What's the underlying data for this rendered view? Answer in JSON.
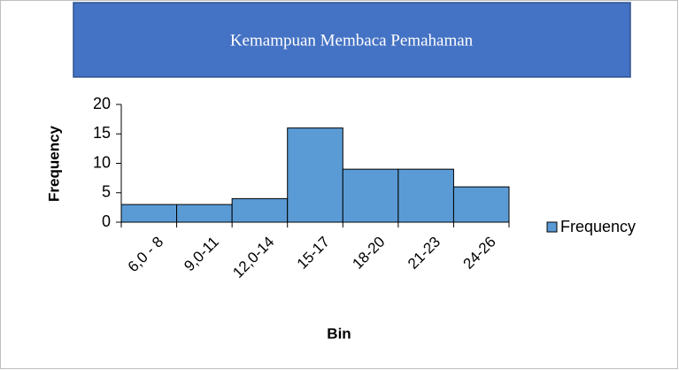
{
  "chart_data": {
    "type": "bar",
    "title": "Kemampuan Membaca Pemahaman",
    "x_label": "Bin",
    "y_label": "Frequency",
    "categories": [
      "6,0 - 8",
      "9,0-11",
      "12,0-14",
      "15-17",
      "18-20",
      "21-23",
      "24-26"
    ],
    "series": [
      {
        "name": "Frequency",
        "color": "#5b9bd5",
        "values": [
          3,
          3,
          4,
          16,
          9,
          9,
          6
        ]
      }
    ],
    "ylim": [
      0,
      20
    ],
    "yticks": [
      0,
      5,
      10,
      15,
      20
    ],
    "grid": false,
    "legend": "right"
  }
}
